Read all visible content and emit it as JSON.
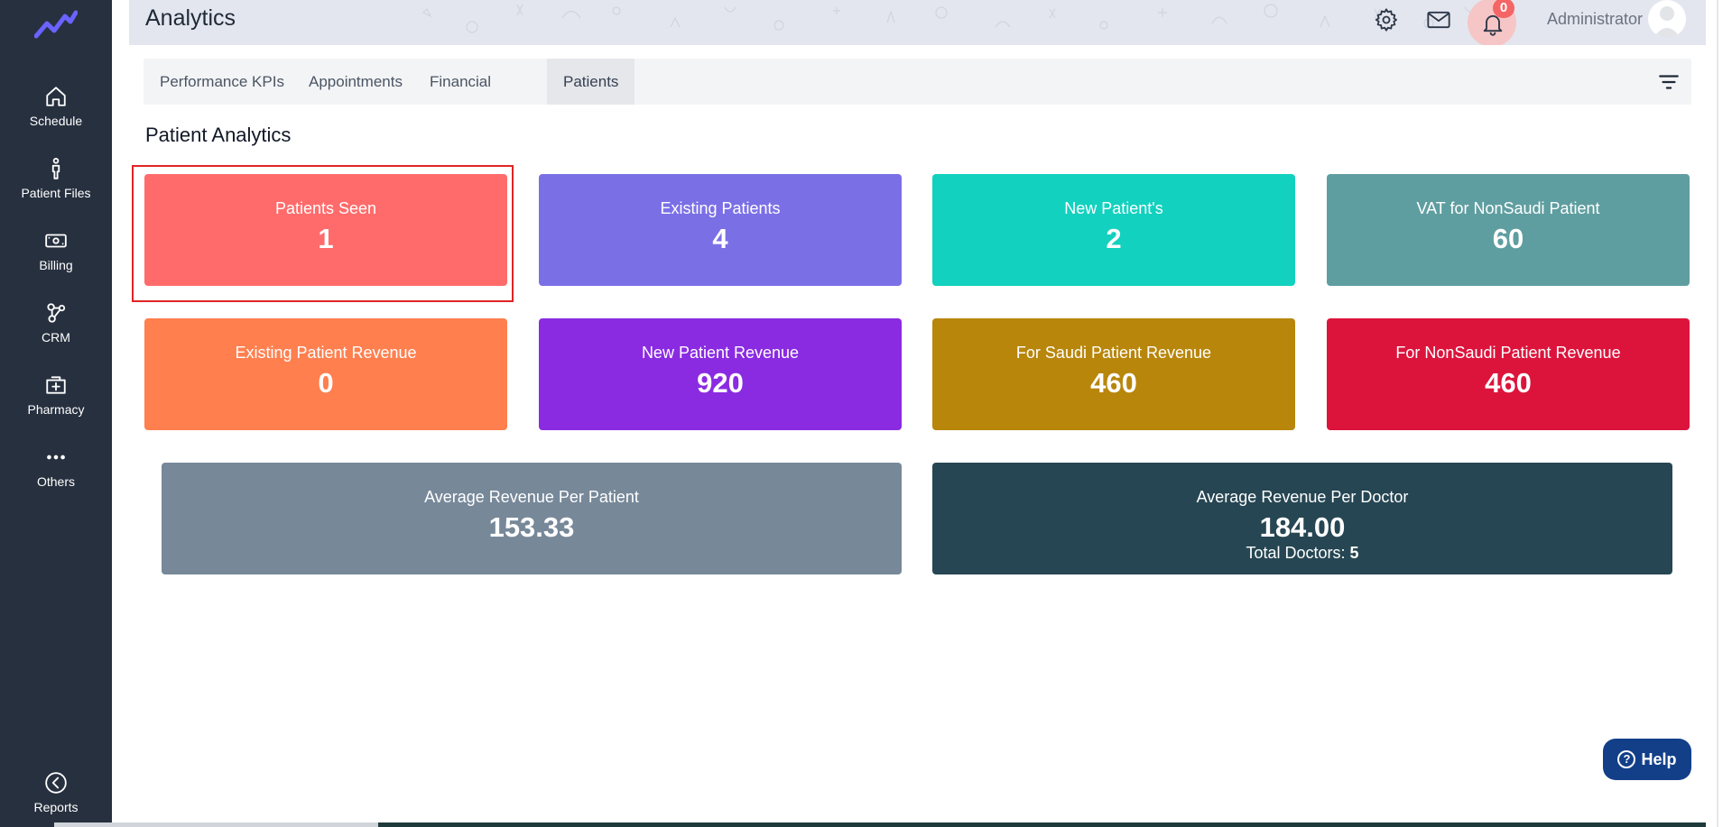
{
  "sidebar": {
    "items": [
      {
        "label": "Schedule",
        "icon": "home-icon"
      },
      {
        "label": "Patient Files",
        "icon": "person-icon"
      },
      {
        "label": "Billing",
        "icon": "money-icon"
      },
      {
        "label": "CRM",
        "icon": "crm-icon"
      },
      {
        "label": "Pharmacy",
        "icon": "pharmacy-icon"
      },
      {
        "label": "Others",
        "icon": "ellipsis-icon"
      },
      {
        "label": "Reports",
        "icon": "collapse-icon"
      }
    ]
  },
  "header": {
    "title": "Analytics",
    "notification_count": "0",
    "user_name": "Administrator"
  },
  "tabs": [
    {
      "label": "Performance KPIs",
      "active": false
    },
    {
      "label": "Appointments",
      "active": false
    },
    {
      "label": "Financial",
      "active": false
    },
    {
      "label": "Patients",
      "active": true
    }
  ],
  "section_title": "Patient Analytics",
  "cards": {
    "patients_seen": {
      "label": "Patients Seen",
      "value": "1",
      "color": "#ff6b6b"
    },
    "existing_patients": {
      "label": "Existing Patients",
      "value": "4",
      "color": "#7b6fe6"
    },
    "new_patients": {
      "label": "New Patient's",
      "value": "2",
      "color": "#12d1bf"
    },
    "vat_nonsaudi": {
      "label": "VAT for NonSaudi Patient",
      "value": "60",
      "color": "#5f9ea0"
    },
    "existing_revenue": {
      "label": "Existing Patient Revenue",
      "value": "0",
      "color": "#ff7f4f"
    },
    "new_revenue": {
      "label": "New Patient Revenue",
      "value": "920",
      "color": "#8a2be2"
    },
    "saudi_revenue": {
      "label": "For Saudi Patient Revenue",
      "value": "460",
      "color": "#b8860b"
    },
    "nonsaudi_revenue": {
      "label": "For NonSaudi Patient Revenue",
      "value": "460",
      "color": "#dc143c"
    },
    "avg_per_patient": {
      "label": "Average Revenue Per Patient",
      "value": "153.33",
      "color": "#778899"
    },
    "avg_per_doctor": {
      "label": "Average Revenue Per Doctor",
      "value": "184.00",
      "sub_label": "Total Doctors:",
      "sub_value": "5",
      "color": "#264653"
    }
  },
  "help": {
    "label": "Help"
  }
}
